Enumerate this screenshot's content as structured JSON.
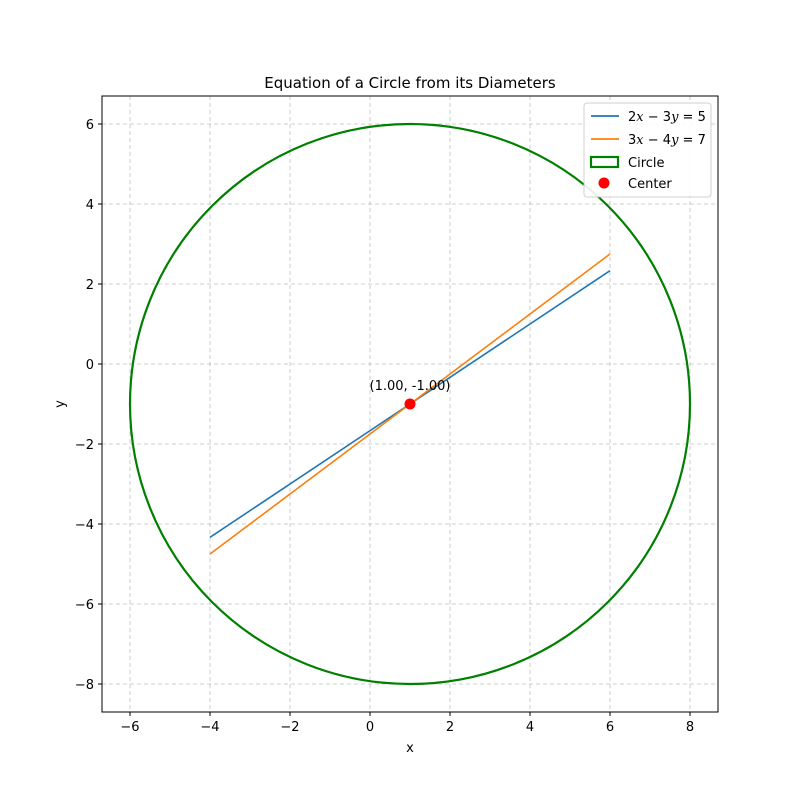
{
  "chart_data": {
    "type": "line",
    "title": "Equation of a Circle from its Diameters",
    "xlabel": "x",
    "ylabel": "y",
    "xlim": [
      -6.7,
      8.7
    ],
    "ylim": [
      -8.7,
      6.7
    ],
    "xticks": [
      -6,
      -4,
      -2,
      0,
      2,
      4,
      6,
      8
    ],
    "yticks": [
      -8,
      -6,
      -4,
      -2,
      0,
      2,
      4,
      6
    ],
    "xtick_labels": [
      "−6",
      "−4",
      "−2",
      "0",
      "2",
      "4",
      "6",
      "8"
    ],
    "ytick_labels": [
      "−8",
      "−6",
      "−4",
      "−2",
      "0",
      "2",
      "4",
      "6"
    ],
    "grid": true,
    "legend_position": "top-right",
    "series": [
      {
        "name": "2x − 3y = 5",
        "name_parts": [
          "2",
          "x",
          " − 3",
          "y",
          " = 5"
        ],
        "color": "#1f77b4",
        "points": [
          [
            -4,
            -4.333
          ],
          [
            6,
            2.333
          ]
        ]
      },
      {
        "name": "3x − 4y = 7",
        "name_parts": [
          "3",
          "x",
          " − 4",
          "y",
          " = 7"
        ],
        "color": "#ff7f0e",
        "points": [
          [
            -4,
            -4.75
          ],
          [
            6,
            2.75
          ]
        ]
      }
    ],
    "circle": {
      "name": "Circle",
      "center": [
        1,
        -1
      ],
      "radius": 7,
      "color": "#008000"
    },
    "center_point": {
      "name": "Center",
      "x": 1,
      "y": -1,
      "color": "#ff0000"
    },
    "annotation": {
      "text": "(1.00, -1.00)",
      "x": 1,
      "y": -1
    }
  }
}
